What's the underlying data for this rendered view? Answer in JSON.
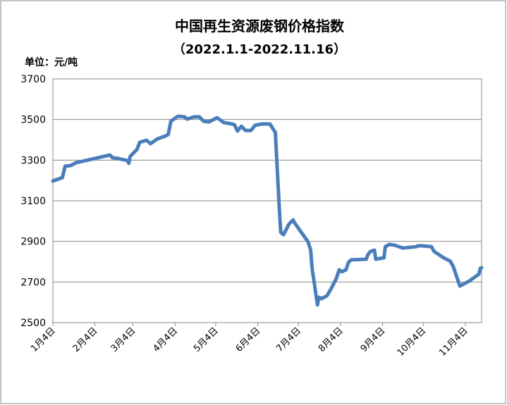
{
  "chart_data": {
    "type": "line",
    "title": "中国再生资源废钢价格指数",
    "subtitle": "（2022.1.1-2022.11.16）",
    "y_axis_label": "单位：元/吨",
    "x": [
      "2022-01-04",
      "2022-01-11",
      "2022-01-13",
      "2022-01-17",
      "2022-01-21",
      "2022-02-15",
      "2022-02-17",
      "2022-02-21",
      "2022-02-28",
      "2022-03-01",
      "2022-03-02",
      "2022-03-07",
      "2022-03-09",
      "2022-03-14",
      "2022-03-17",
      "2022-03-22",
      "2022-03-28",
      "2022-03-30",
      "2022-04-01",
      "2022-04-06",
      "2022-04-11",
      "2022-04-13",
      "2022-04-18",
      "2022-04-22",
      "2022-04-25",
      "2022-04-29",
      "2022-05-05",
      "2022-05-10",
      "2022-05-16",
      "2022-05-18",
      "2022-05-20",
      "2022-05-23",
      "2022-05-26",
      "2022-05-30",
      "2022-06-02",
      "2022-06-07",
      "2022-06-13",
      "2022-06-17",
      "2022-06-20",
      "2022-06-21",
      "2022-06-23",
      "2022-06-27",
      "2022-06-30",
      "2022-07-01",
      "2022-07-11",
      "2022-07-13",
      "2022-07-14",
      "2022-07-18",
      "2022-07-19",
      "2022-07-21",
      "2022-07-25",
      "2022-07-28",
      "2022-08-01",
      "2022-08-03",
      "2022-08-05",
      "2022-08-08",
      "2022-08-10",
      "2022-08-12",
      "2022-08-23",
      "2022-08-24",
      "2022-08-26",
      "2022-08-29",
      "2022-08-30",
      "2022-09-05",
      "2022-09-06",
      "2022-09-09",
      "2022-09-13",
      "2022-09-16",
      "2022-09-19",
      "2022-09-29",
      "2022-09-30",
      "2022-10-03",
      "2022-10-10",
      "2022-10-12",
      "2022-10-19",
      "2022-10-21",
      "2022-10-24",
      "2022-10-26",
      "2022-10-31",
      "2022-11-07",
      "2022-11-14",
      "2022-11-15",
      "2022-11-16"
    ],
    "series": [
      {
        "color": "#4a7ebb",
        "values": [
          3197,
          3214,
          3270,
          3273,
          3287,
          3325,
          3312,
          3308,
          3298,
          3284,
          3319,
          3353,
          3388,
          3398,
          3381,
          3405,
          3419,
          3426,
          3492,
          3516,
          3513,
          3502,
          3513,
          3513,
          3492,
          3488,
          3509,
          3485,
          3478,
          3474,
          3443,
          3467,
          3446,
          3446,
          3471,
          3478,
          3478,
          3436,
          3048,
          2944,
          2933,
          2985,
          3006,
          2992,
          2899,
          2857,
          2770,
          2587,
          2625,
          2618,
          2632,
          2666,
          2718,
          2760,
          2750,
          2760,
          2798,
          2809,
          2812,
          2833,
          2850,
          2857,
          2812,
          2819,
          2874,
          2885,
          2881,
          2874,
          2867,
          2874,
          2878,
          2878,
          2874,
          2850,
          2819,
          2812,
          2802,
          2777,
          2680,
          2705,
          2739,
          2767,
          2770
        ]
      }
    ],
    "xlim": [
      "2022-01-04",
      "2022-11-16"
    ],
    "xticks": [
      {
        "value": "2022-01-04",
        "label": "1月4日"
      },
      {
        "value": "2022-02-04",
        "label": "2月4日"
      },
      {
        "value": "2022-03-04",
        "label": "3月4日"
      },
      {
        "value": "2022-04-04",
        "label": "4月4日"
      },
      {
        "value": "2022-05-04",
        "label": "5月4日"
      },
      {
        "value": "2022-06-04",
        "label": "6月4日"
      },
      {
        "value": "2022-07-04",
        "label": "7月4日"
      },
      {
        "value": "2022-08-04",
        "label": "8月4日"
      },
      {
        "value": "2022-09-04",
        "label": "9月4日"
      },
      {
        "value": "2022-10-04",
        "label": "10月4日"
      },
      {
        "value": "2022-11-04",
        "label": "11月4日"
      }
    ],
    "ylim": [
      2500,
      3700
    ],
    "yticks": [
      2500,
      2700,
      2900,
      3100,
      3300,
      3500,
      3700
    ],
    "grid": true
  }
}
